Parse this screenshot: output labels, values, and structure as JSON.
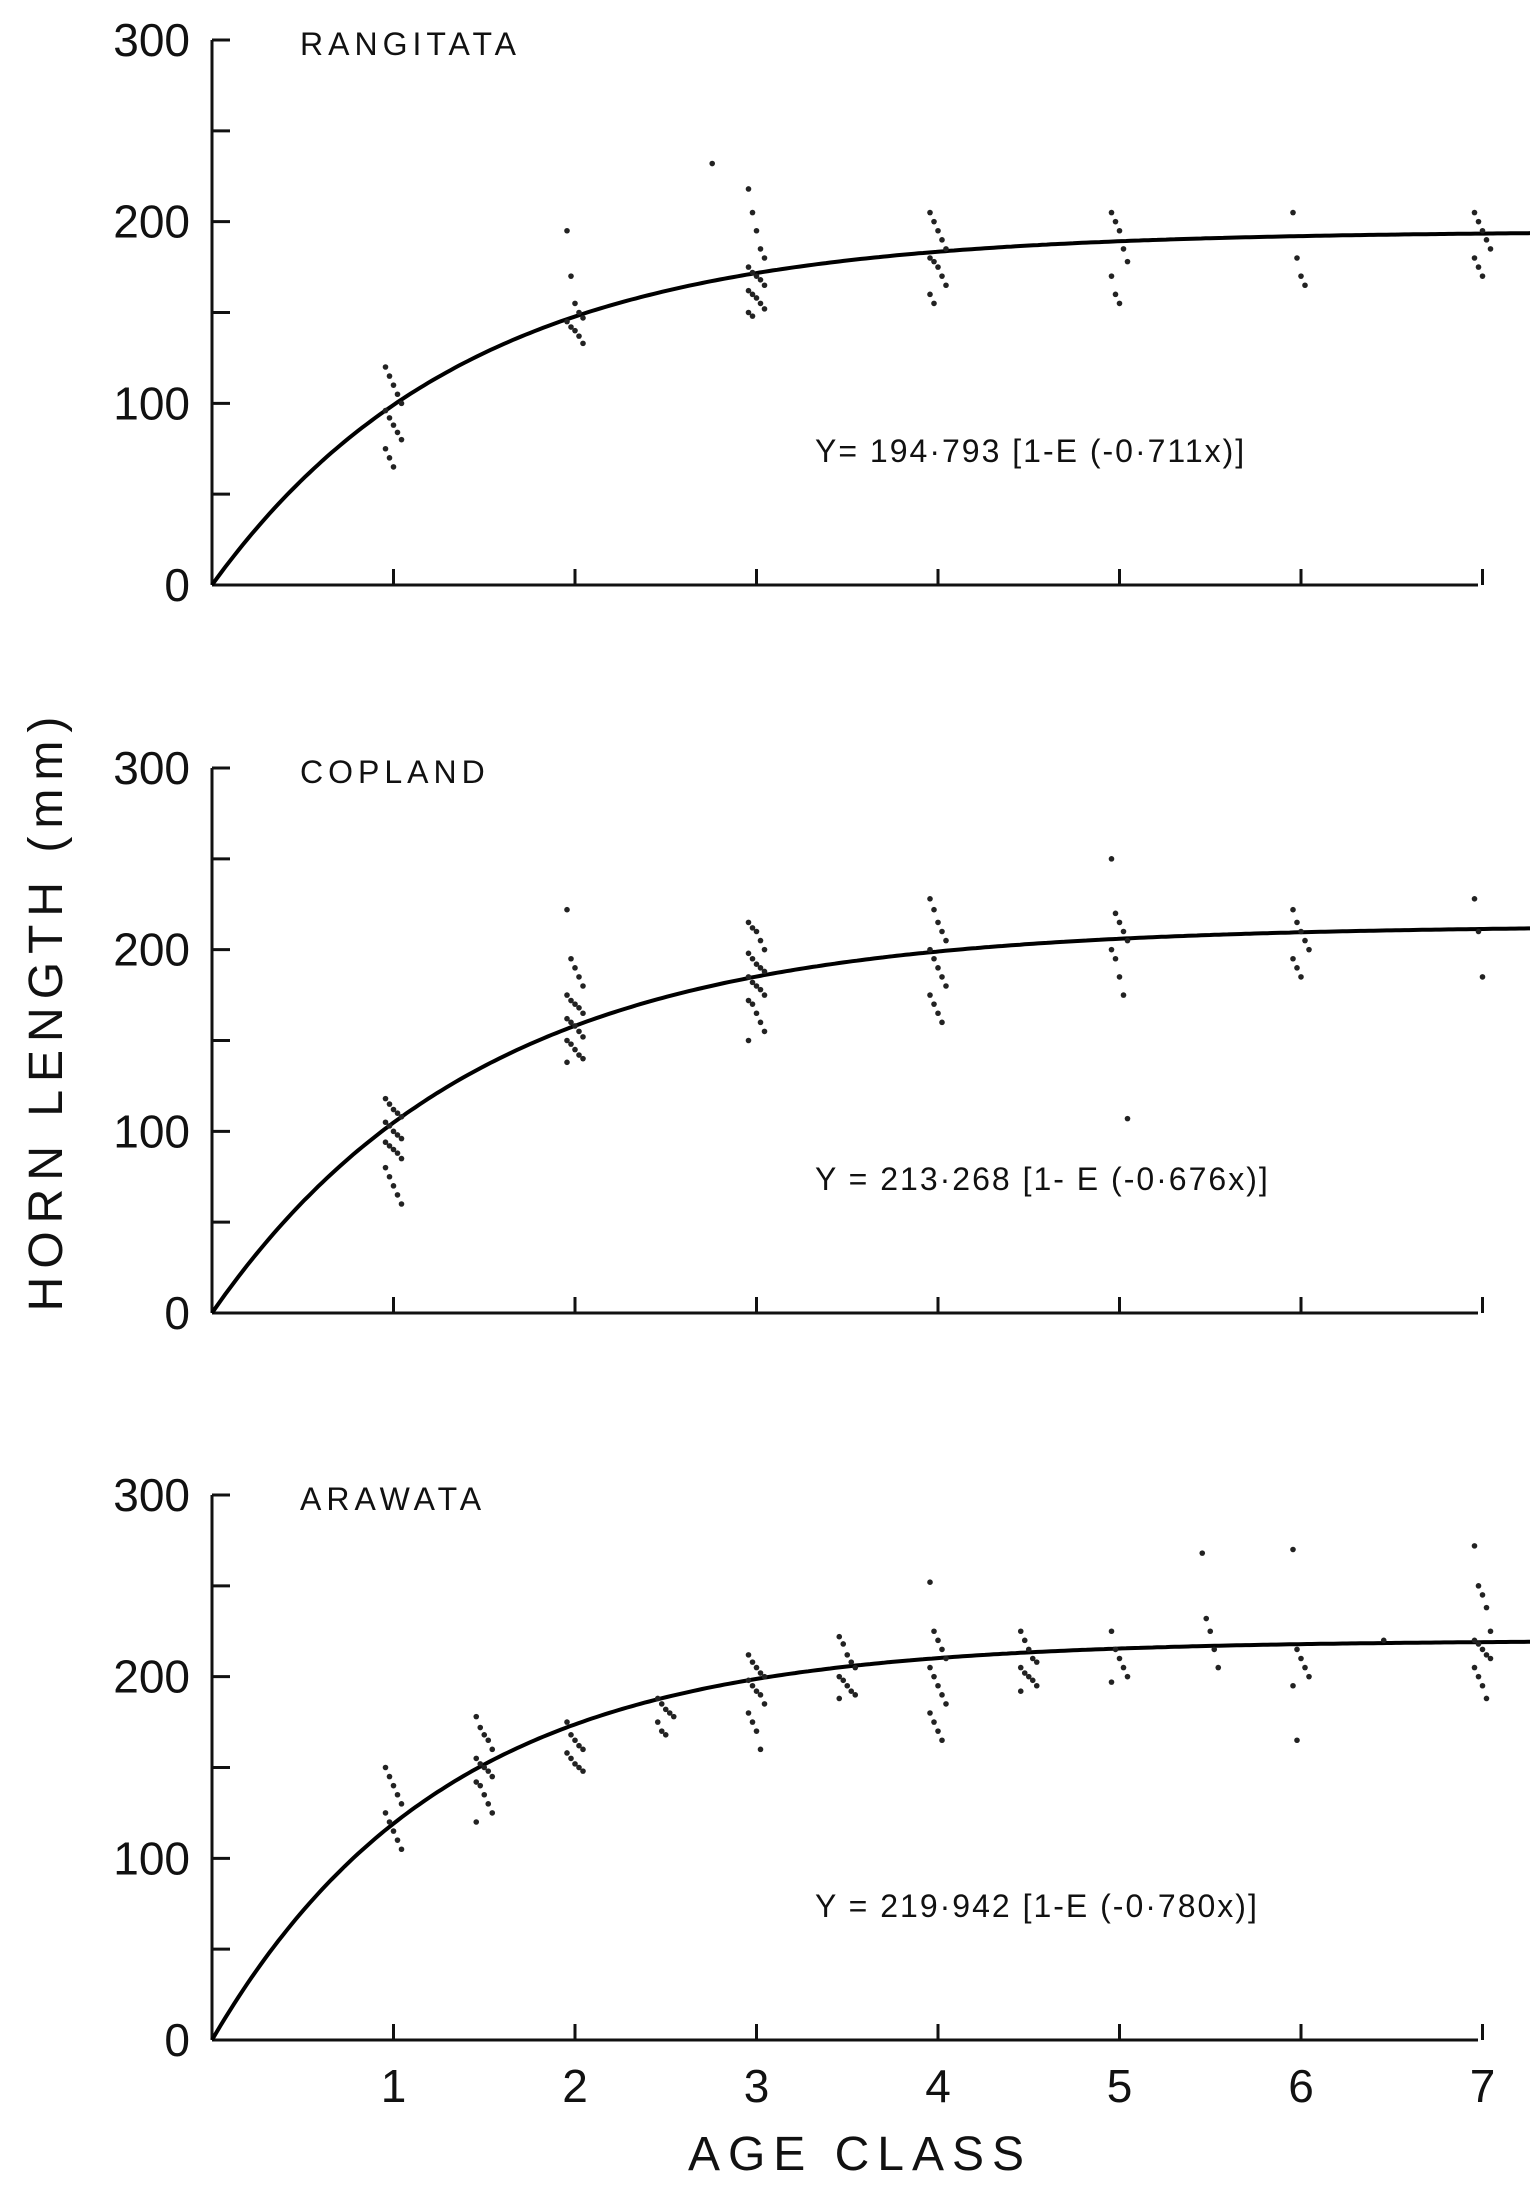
{
  "chart_data": [
    {
      "type": "scatter",
      "title": "RANGITATA",
      "equation": "Y= 194·793  [1-E (-0·711x)]",
      "ylim": [
        0,
        300
      ],
      "xlim": [
        0,
        7.3
      ],
      "yticks": [
        "0",
        "100",
        "200",
        "300"
      ],
      "fit": {
        "asymptote": 194.793,
        "k": 0.711
      },
      "series": [
        {
          "x": 1,
          "values": [
            120,
            115,
            110,
            105,
            100,
            96,
            92,
            88,
            84,
            80,
            75,
            70,
            65
          ]
        },
        {
          "x": 2,
          "values": [
            195,
            170,
            155,
            150,
            147,
            145,
            142,
            140,
            137,
            133
          ]
        },
        {
          "x": 2.8,
          "values": [
            232
          ]
        },
        {
          "x": 3,
          "values": [
            218,
            205,
            195,
            185,
            180,
            175,
            172,
            170,
            168,
            165,
            162,
            160,
            158,
            155,
            152,
            150,
            148
          ]
        },
        {
          "x": 4,
          "values": [
            205,
            200,
            195,
            190,
            185,
            180,
            178,
            175,
            170,
            165,
            160,
            155
          ]
        },
        {
          "x": 5,
          "values": [
            205,
            200,
            195,
            185,
            178,
            170,
            160,
            155
          ]
        },
        {
          "x": 6,
          "values": [
            205,
            180,
            170,
            165
          ]
        },
        {
          "x": 7,
          "values": [
            205,
            200,
            195,
            190,
            185,
            180,
            175,
            170
          ]
        }
      ]
    },
    {
      "type": "scatter",
      "title": "COPLAND",
      "equation": "Y = 213·268 [1- E (-0·676x)]",
      "ylim": [
        0,
        300
      ],
      "xlim": [
        0,
        7.3
      ],
      "yticks": [
        "0",
        "100",
        "200",
        "300"
      ],
      "fit": {
        "asymptote": 213.268,
        "k": 0.676
      },
      "series": [
        {
          "x": 1,
          "values": [
            118,
            115,
            112,
            110,
            108,
            105,
            103,
            100,
            98,
            96,
            94,
            92,
            90,
            88,
            85,
            80,
            75,
            70,
            65,
            60
          ]
        },
        {
          "x": 2,
          "values": [
            222,
            195,
            190,
            185,
            180,
            175,
            172,
            170,
            168,
            165,
            162,
            160,
            158,
            155,
            152,
            150,
            148,
            145,
            142,
            140,
            138
          ]
        },
        {
          "x": 3,
          "values": [
            215,
            212,
            210,
            205,
            200,
            198,
            195,
            192,
            190,
            188,
            185,
            182,
            180,
            178,
            175,
            172,
            170,
            165,
            160,
            155,
            150
          ]
        },
        {
          "x": 4,
          "values": [
            228,
            222,
            215,
            210,
            205,
            200,
            195,
            190,
            185,
            180,
            175,
            170,
            165,
            160
          ]
        },
        {
          "x": 5,
          "values": [
            250,
            220,
            215,
            210,
            205,
            200,
            195,
            185,
            175,
            107
          ]
        },
        {
          "x": 6,
          "values": [
            222,
            215,
            210,
            205,
            200,
            195,
            190,
            185
          ]
        },
        {
          "x": 7,
          "values": [
            228,
            210,
            185
          ]
        }
      ]
    },
    {
      "type": "scatter",
      "title": "ARAWATA",
      "equation": "Y = 219·942  [1-E (-0·780x)]",
      "ylim": [
        0,
        300
      ],
      "xlim": [
        0,
        7.3
      ],
      "xticks": [
        "1",
        "2",
        "3",
        "4",
        "5",
        "6",
        "7"
      ],
      "yticks": [
        "0",
        "100",
        "200",
        "300"
      ],
      "fit": {
        "asymptote": 219.942,
        "k": 0.78
      },
      "series": [
        {
          "x": 1,
          "values": [
            150,
            145,
            140,
            135,
            130,
            125,
            120,
            115,
            110,
            105
          ]
        },
        {
          "x": 1.5,
          "values": [
            178,
            172,
            168,
            165,
            160,
            155,
            152,
            150,
            148,
            145,
            142,
            140,
            135,
            130,
            125,
            120
          ]
        },
        {
          "x": 2,
          "values": [
            175,
            168,
            165,
            162,
            160,
            158,
            155,
            152,
            150,
            148
          ]
        },
        {
          "x": 2.5,
          "values": [
            188,
            185,
            182,
            180,
            178,
            175,
            170,
            168
          ]
        },
        {
          "x": 3,
          "values": [
            212,
            208,
            205,
            202,
            200,
            198,
            195,
            192,
            190,
            185,
            180,
            175,
            170,
            160
          ]
        },
        {
          "x": 3.5,
          "values": [
            222,
            218,
            212,
            208,
            205,
            200,
            198,
            195,
            192,
            190,
            188
          ]
        },
        {
          "x": 4,
          "values": [
            252,
            225,
            220,
            215,
            210,
            205,
            200,
            195,
            190,
            185,
            180,
            175,
            170,
            165
          ]
        },
        {
          "x": 4.5,
          "values": [
            225,
            220,
            215,
            210,
            208,
            205,
            202,
            200,
            198,
            195,
            192
          ]
        },
        {
          "x": 5,
          "values": [
            225,
            215,
            210,
            205,
            200,
            197
          ]
        },
        {
          "x": 5.5,
          "values": [
            268,
            232,
            225,
            215,
            205
          ]
        },
        {
          "x": 6,
          "values": [
            270,
            215,
            210,
            205,
            200,
            195,
            165
          ]
        },
        {
          "x": 6.5,
          "values": [
            220
          ]
        },
        {
          "x": 7,
          "values": [
            272,
            250,
            245,
            238,
            225,
            220,
            218,
            215,
            212,
            210,
            205,
            200,
            195,
            188
          ]
        }
      ]
    }
  ],
  "axis_titles": {
    "y": "HORN   LENGTH   (mm)",
    "x": "AGE      CLASS"
  }
}
